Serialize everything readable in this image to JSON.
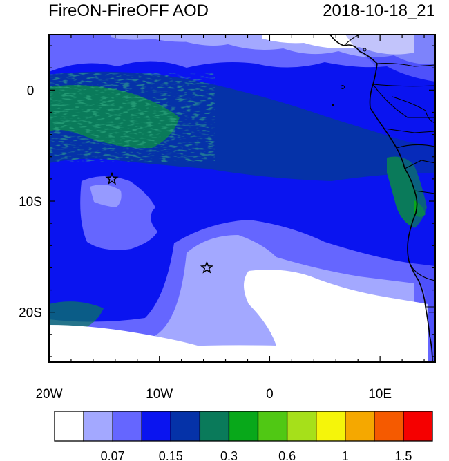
{
  "title": "FireON-FireOFF AOD",
  "timestamp": "2018-10-18_21",
  "map": {
    "lat_labels": [
      {
        "lat": 0,
        "text": "0"
      },
      {
        "lat": -10,
        "text": "10S"
      },
      {
        "lat": -20,
        "text": "20S"
      }
    ],
    "lon_labels": [
      {
        "lon": -20,
        "text": "20W"
      },
      {
        "lon": -10,
        "text": "10W"
      },
      {
        "lon": 0,
        "text": "0"
      },
      {
        "lon": 10,
        "text": "10E"
      }
    ],
    "lon_range": [
      -20,
      15
    ],
    "lat_range": [
      -24.5,
      5
    ],
    "markers": [
      {
        "name": "star-marker-north",
        "lon": -14.3,
        "lat": -8.0
      },
      {
        "name": "star-marker-south",
        "lon": -5.7,
        "lat": -16.0
      }
    ]
  },
  "colorbar": {
    "colors": [
      "#ffffff",
      "#a3a8ff",
      "#6566ff",
      "#0a14f0",
      "#0532a8",
      "#0a7a5a",
      "#08a81a",
      "#50c814",
      "#a6e01a",
      "#f5f50a",
      "#f5a800",
      "#f55a00",
      "#f50000"
    ],
    "labels": [
      {
        "after_bin": 2,
        "text": "0.07"
      },
      {
        "after_bin": 4,
        "text": "0.15"
      },
      {
        "after_bin": 6,
        "text": "0.3"
      },
      {
        "after_bin": 8,
        "text": "0.6"
      },
      {
        "after_bin": 10,
        "text": "1"
      },
      {
        "after_bin": 12,
        "text": "1.5"
      }
    ]
  }
}
